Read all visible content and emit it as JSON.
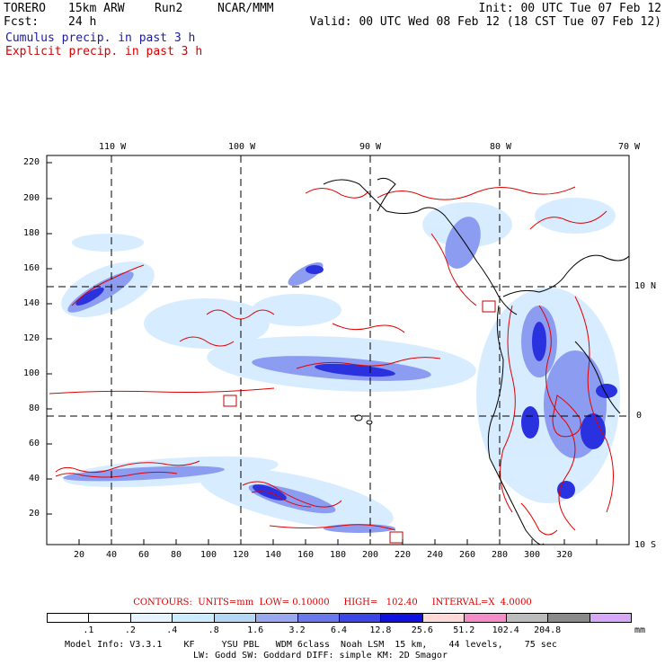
{
  "header": {
    "model": "TORERO",
    "resolution": "15km ARW",
    "run": "Run2",
    "org": "NCAR/MMM",
    "init": "Init: 00 UTC Tue 07 Feb 12",
    "fcst_label": "Fcst:",
    "fcst_value": "24 h",
    "valid": "Valid: 00 UTC Wed 08 Feb 12 (18 CST Tue 07 Feb 12)"
  },
  "legend": {
    "cumulus": "Cumulus precip. in past 3 h",
    "explicit": "Explicit precip. in past 3 h"
  },
  "axes": {
    "top_lon_labels": [
      "110 W",
      "100 W",
      "90 W",
      "80 W",
      "70 W"
    ],
    "left_labels": [
      "220",
      "200",
      "180",
      "160",
      "140",
      "120",
      "100",
      "80",
      "60",
      "40",
      "20"
    ],
    "bottom_labels": [
      "20",
      "40",
      "60",
      "80",
      "100",
      "120",
      "140",
      "160",
      "180",
      "200",
      "220",
      "240",
      "260",
      "280",
      "300",
      "320"
    ],
    "right_lat_labels": [
      "10 N",
      "0",
      "10 S"
    ]
  },
  "contours_info": {
    "contours_label": "CONTOURS:",
    "units": "UNITS=mm",
    "low": "LOW= 0.10000",
    "high": "HIGH=   102.40",
    "interval": "INTERVAL=X  4.0000"
  },
  "colorbar": {
    "units": "mm",
    "labels": [
      ".1",
      ".2",
      ".4",
      ".8",
      "1.6",
      "3.2",
      "6.4",
      "12.8",
      "25.6",
      "51.2",
      "102.4",
      "204.8"
    ],
    "colors": [
      "#ffffff",
      "#ffffff",
      "#e6f4ff",
      "#ccecff",
      "#b4d8f4",
      "#9aa8f0",
      "#6a78ee",
      "#3c46e8",
      "#1010e0",
      "#ffd8d8",
      "#f48cc8",
      "#bcbcbc",
      "#8a8a8a",
      "#d8a8f8"
    ]
  },
  "footer": {
    "line1": "Model Info: V3.3.1    KF     YSU PBL   WDM 6class  Noah LSM  15 km,    44 levels,    75 sec",
    "line2": "LW: Godd SW: Goddard DIFF: simple KM: 2D Smagor"
  }
}
